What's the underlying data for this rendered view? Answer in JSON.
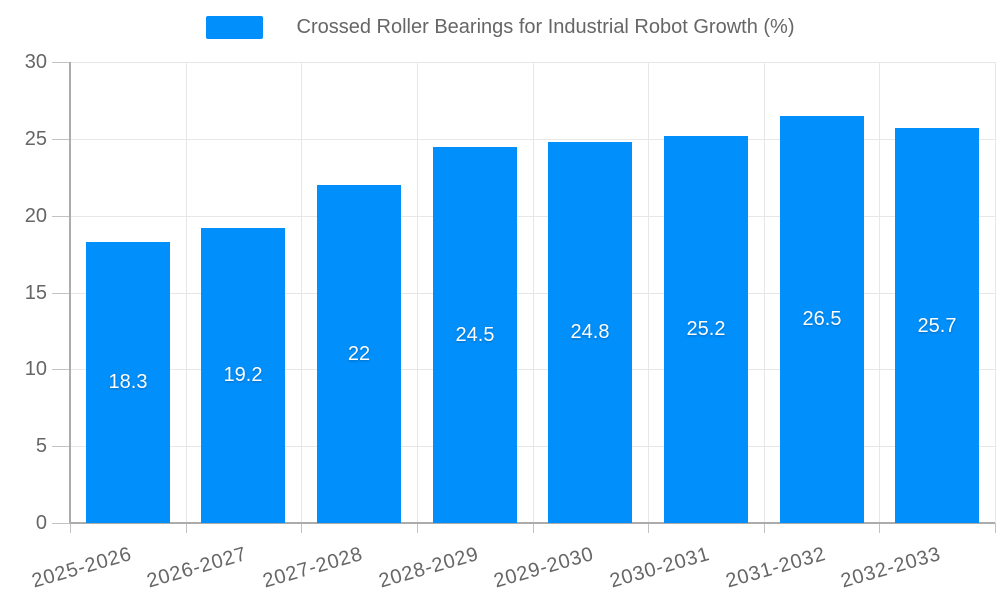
{
  "chart_data": {
    "type": "bar",
    "title": "Crossed Roller Bearings for Industrial Robot Growth (%)",
    "legend": {
      "position": "top",
      "items": [
        {
          "label": "Crossed Roller Bearings for Industrial Robot Growth (%)",
          "color": "#008FFB"
        }
      ]
    },
    "categories": [
      "2025-2026",
      "2026-2027",
      "2027-2028",
      "2028-2029",
      "2029-2030",
      "2030-2031",
      "2031-2032",
      "2032-2033"
    ],
    "series": [
      {
        "name": "Crossed Roller Bearings for Industrial Robot Growth (%)",
        "values": [
          18.3,
          19.2,
          22,
          24.5,
          24.8,
          25.2,
          26.5,
          25.7
        ]
      }
    ],
    "data_labels": [
      "18.3",
      "19.2",
      "22",
      "24.5",
      "24.8",
      "25.2",
      "26.5",
      "25.7"
    ],
    "xlabel": "",
    "ylabel": "",
    "ylim": [
      0,
      30
    ],
    "yticks": [
      0,
      5,
      10,
      15,
      20,
      25,
      30
    ],
    "ytick_labels": [
      "0",
      "5",
      "10",
      "15",
      "20",
      "25",
      "30"
    ],
    "grid": "both",
    "colors": {
      "bar": "#008FFB",
      "gridline": "#E7E7E7",
      "axis_line": "#ACACAC",
      "tick_mark": "#C2C2C2",
      "axis_label": "#666666",
      "data_label": "#FFFFFF",
      "legend_text": "#666666"
    }
  }
}
